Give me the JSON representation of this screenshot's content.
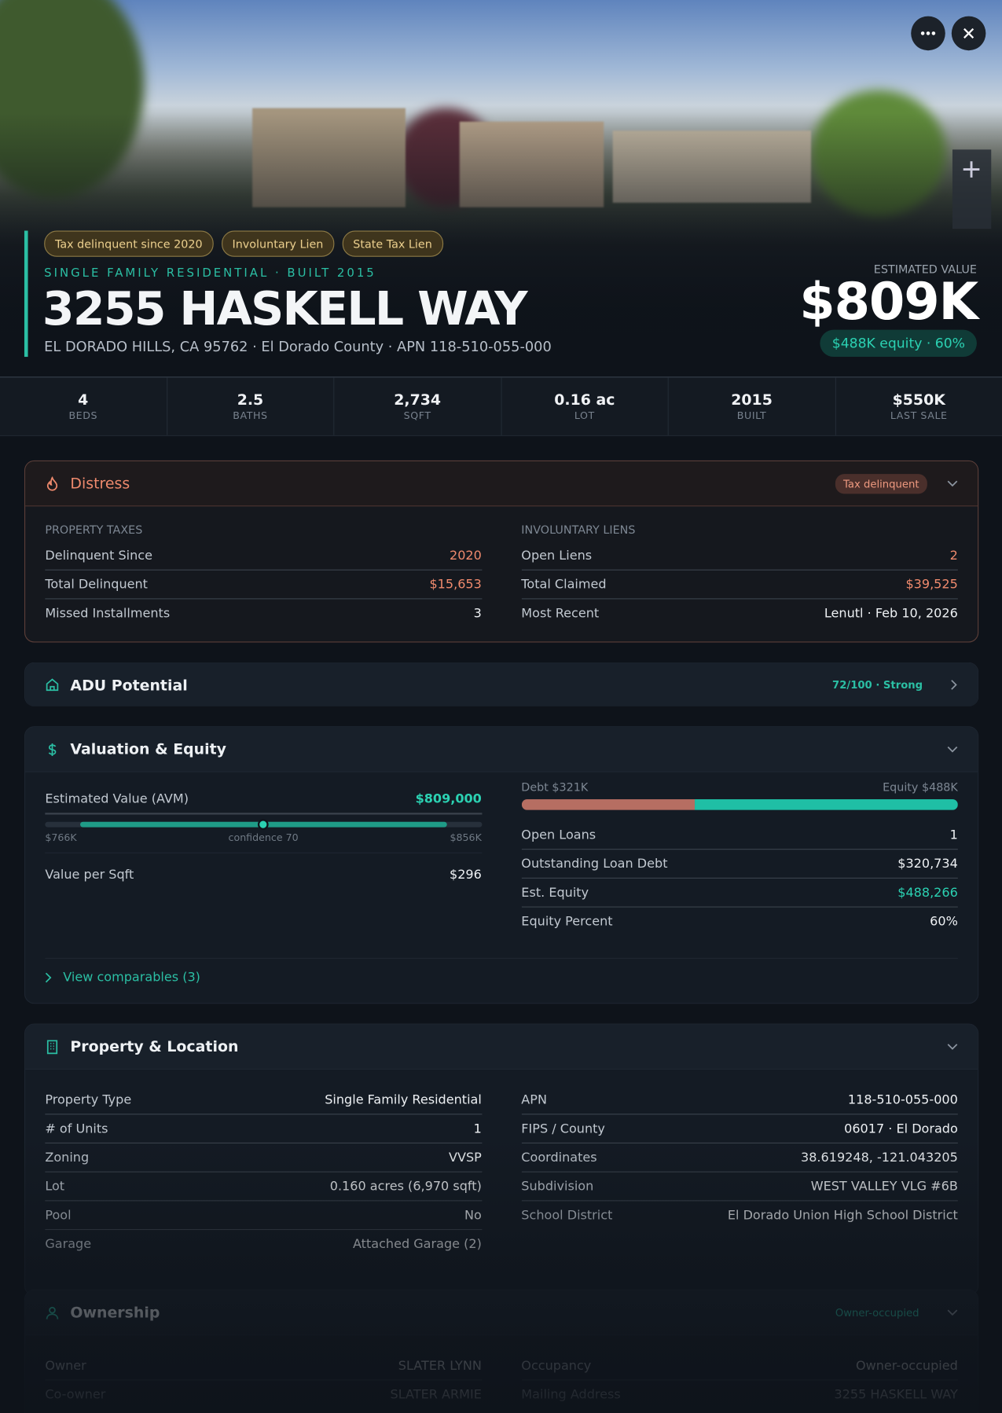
{
  "hero": {
    "tags": [
      "Tax delinquent since 2020",
      "Involuntary Lien",
      "State Tax Lien"
    ],
    "subtitle": "SINGLE FAMILY RESIDENTIAL · BUILT 2015",
    "title": "3255 HASKELL WAY",
    "address": "EL DORADO HILLS, CA 95762 · El Dorado County · APN 118-510-055-000",
    "value_label": "ESTIMATED VALUE",
    "value": "$809K",
    "equity": "$488K equity · 60%"
  },
  "stats": [
    {
      "value": "4",
      "label": "BEDS"
    },
    {
      "value": "2.5",
      "label": "BATHS"
    },
    {
      "value": "2,734",
      "label": "SQFT"
    },
    {
      "value": "0.16 ac",
      "label": "LOT"
    },
    {
      "value": "2015",
      "label": "BUILT"
    },
    {
      "value": "$550K",
      "label": "LAST SALE"
    }
  ],
  "distress": {
    "title": "Distress",
    "badge": "Tax delinquent",
    "left": {
      "heading": "PROPERTY TAXES",
      "rows": [
        {
          "label": "Delinquent Since",
          "value": "2020",
          "color": "#ef8a6d"
        },
        {
          "label": "Total Delinquent",
          "value": "$15,653",
          "color": "#ef8a6d"
        },
        {
          "label": "Missed Installments",
          "value": "3"
        }
      ]
    },
    "right": {
      "heading": "INVOLUNTARY LIENS",
      "rows": [
        {
          "label": "Open Liens",
          "value": "2",
          "color": "#ef8a6d"
        },
        {
          "label": "Total Claimed",
          "value": "$39,525",
          "color": "#ef8a6d"
        },
        {
          "label": "Most Recent",
          "value": "Lenutl · Feb 10, 2026"
        }
      ]
    }
  },
  "adu": {
    "title": "ADU Potential",
    "badge": "72/100 · Strong"
  },
  "valuation": {
    "title": "Valuation & Equity",
    "avm_label": "Estimated Value (AVM)",
    "avm": "$809,000",
    "range_low": "$766K",
    "confidence": "confidence 70",
    "range_high": "$856K",
    "left_rows": [
      {
        "label": "Value per Sqft",
        "value": "$296"
      }
    ],
    "debt": "Debt $321K",
    "equity": "Equity $488K",
    "right_rows": [
      {
        "label": "Open Loans",
        "value": "1"
      },
      {
        "label": "Outstanding Loan Debt",
        "value": "$320,734"
      },
      {
        "label": "Est. Equity",
        "value": "$488,266",
        "color": "#2bd1b2"
      },
      {
        "label": "Equity Percent",
        "value": "60%"
      }
    ],
    "link": "View comparables (3)"
  },
  "property": {
    "title": "Property & Location",
    "left_rows": [
      {
        "label": "Property Type",
        "value": "Single Family Residential"
      },
      {
        "label": "# of Units",
        "value": "1"
      },
      {
        "label": "Zoning",
        "value": "VVSP"
      },
      {
        "label": "Lot",
        "value": "0.160 acres (6,970 sqft)"
      },
      {
        "label": "Pool",
        "value": "No"
      },
      {
        "label": "Garage",
        "value": "Attached Garage (2)"
      }
    ],
    "right_rows": [
      {
        "label": "APN",
        "value": "118-510-055-000"
      },
      {
        "label": "FIPS / County",
        "value": "06017 · El Dorado"
      },
      {
        "label": "Coordinates",
        "value": "38.619248, -121.043205"
      },
      {
        "label": "Subdivision",
        "value": "WEST VALLEY VLG #6B"
      },
      {
        "label": "School District",
        "value": "El Dorado Union High School District"
      }
    ]
  },
  "ownership": {
    "title": "Ownership",
    "badge": "Owner-occupied",
    "left_rows": [
      {
        "label": "Owner",
        "value": "SLATER LYNN"
      },
      {
        "label": "Co-owner",
        "value": "SLATER ARMIE"
      }
    ],
    "right_rows": [
      {
        "label": "Occupancy",
        "value": "Owner-occupied"
      },
      {
        "label": "Mailing Address",
        "value": "3255 HASKELL WAY"
      }
    ]
  }
}
